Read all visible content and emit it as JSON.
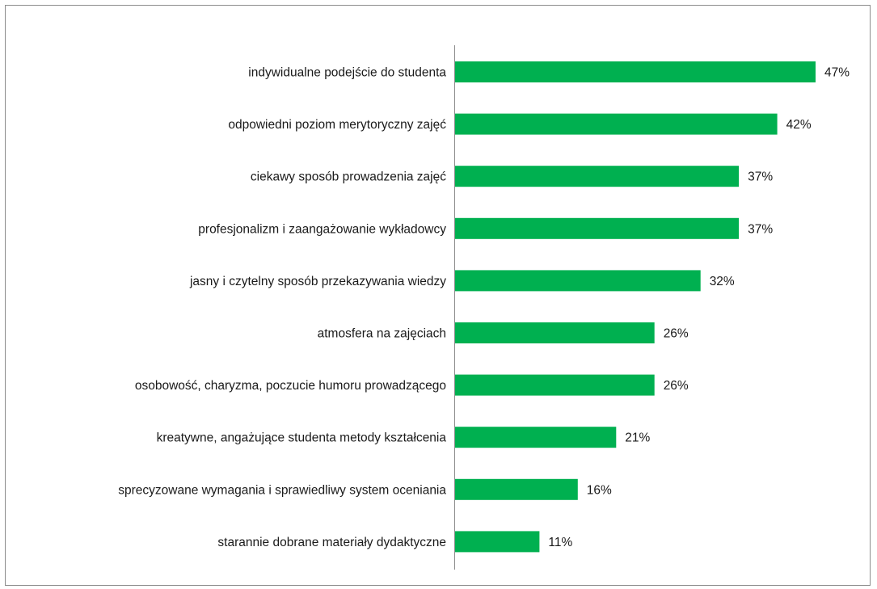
{
  "chart_data": {
    "type": "bar",
    "orientation": "horizontal",
    "title": "",
    "xlabel": "",
    "ylabel": "",
    "xlim": [
      0,
      47
    ],
    "grid": false,
    "legend": "none",
    "value_suffix": "%",
    "bar_color": "#00b050",
    "categories": [
      "indywidualne podejście do studenta",
      "odpowiedni poziom merytoryczny zajęć",
      "ciekawy sposób prowadzenia zajęć",
      "profesjonalizm i zaangażowanie wykładowcy",
      "jasny i czytelny sposób przekazywania wiedzy",
      "atmosfera na zajęciach",
      "osobowość, charyzma, poczucie humoru prowadzącego",
      "kreatywne, angażujące studenta metody kształcenia",
      "sprecyzowane wymagania i sprawiedliwy system oceniania",
      "starannie dobrane materiały dydaktyczne"
    ],
    "values": [
      47,
      42,
      37,
      37,
      32,
      26,
      26,
      21,
      16,
      11
    ],
    "value_labels": [
      "47%",
      "42%",
      "37%",
      "37%",
      "32%",
      "26%",
      "26%",
      "21%",
      "16%",
      "11%"
    ]
  }
}
